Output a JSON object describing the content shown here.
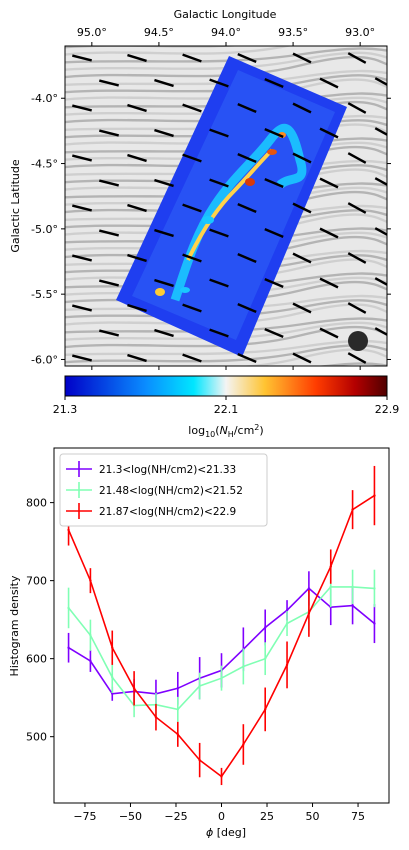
{
  "chart_data": [
    {
      "type": "heatmap",
      "xlabel": "Galactic Longitude",
      "ylabel": "Galactic Latitude",
      "x_ticks": [
        "95.0°",
        "94.5°",
        "94.0°",
        "93.5°",
        "93.0°"
      ],
      "x_tick_values": [
        95.0,
        94.5,
        94.0,
        93.5,
        93.0
      ],
      "y_ticks": [
        "-4.0°",
        "-4.5°",
        "-5.0°",
        "-5.5°",
        "-6.0°"
      ],
      "y_tick_values": [
        -4.0,
        -4.5,
        -5.0,
        -5.5,
        -6.0
      ],
      "xlim": [
        95.2,
        92.8
      ],
      "ylim": [
        -6.05,
        -3.6
      ],
      "colorbar": {
        "label": "log10(NH/cm2)",
        "ticks": [
          "21.3",
          "22.1",
          "22.9"
        ],
        "range": [
          21.3,
          22.9
        ]
      },
      "legend": "none"
    },
    {
      "type": "line",
      "xlabel": "ϕ [deg]",
      "ylabel": "Histogram density",
      "xlim": [
        -92,
        92
      ],
      "ylim": [
        415,
        870
      ],
      "x_ticks": [
        -75,
        -50,
        -25,
        0,
        25,
        50,
        75
      ],
      "y_ticks": [
        500,
        600,
        700,
        800
      ],
      "x": [
        -84,
        -72,
        -60,
        -48,
        -36,
        -24,
        -12,
        0,
        12,
        24,
        36,
        48,
        60,
        72,
        84
      ],
      "legend_position": "top-left",
      "series": [
        {
          "name": "21.3<log(NH/cm2)<21.33",
          "color": "#7f00ff",
          "values": [
            614,
            597,
            555,
            558,
            555,
            562,
            575,
            585,
            612,
            640,
            662,
            690,
            666,
            668,
            645
          ],
          "errors": [
            19,
            14,
            9,
            16,
            18,
            21,
            27,
            22,
            28,
            23,
            13,
            22,
            23,
            24,
            25
          ]
        },
        {
          "name": "21.48<log(NH/cm2)<21.52",
          "color": "#80ffb4",
          "values": [
            665,
            630,
            576,
            540,
            541,
            535,
            565,
            575,
            590,
            600,
            645,
            660,
            692,
            692,
            690
          ],
          "errors": [
            26,
            20,
            20,
            15,
            15,
            16,
            17,
            16,
            23,
            21,
            16,
            24,
            26,
            22,
            24
          ]
        },
        {
          "name": "21.87<log(NH/cm2)<22.9",
          "color": "#ff0000",
          "values": [
            765,
            700,
            614,
            562,
            525,
            503,
            470,
            449,
            490,
            535,
            592,
            658,
            718,
            791,
            809
          ],
          "errors": [
            20,
            16,
            22,
            22,
            17,
            16,
            22,
            11,
            26,
            28,
            30,
            30,
            22,
            25,
            38
          ]
        }
      ]
    }
  ]
}
